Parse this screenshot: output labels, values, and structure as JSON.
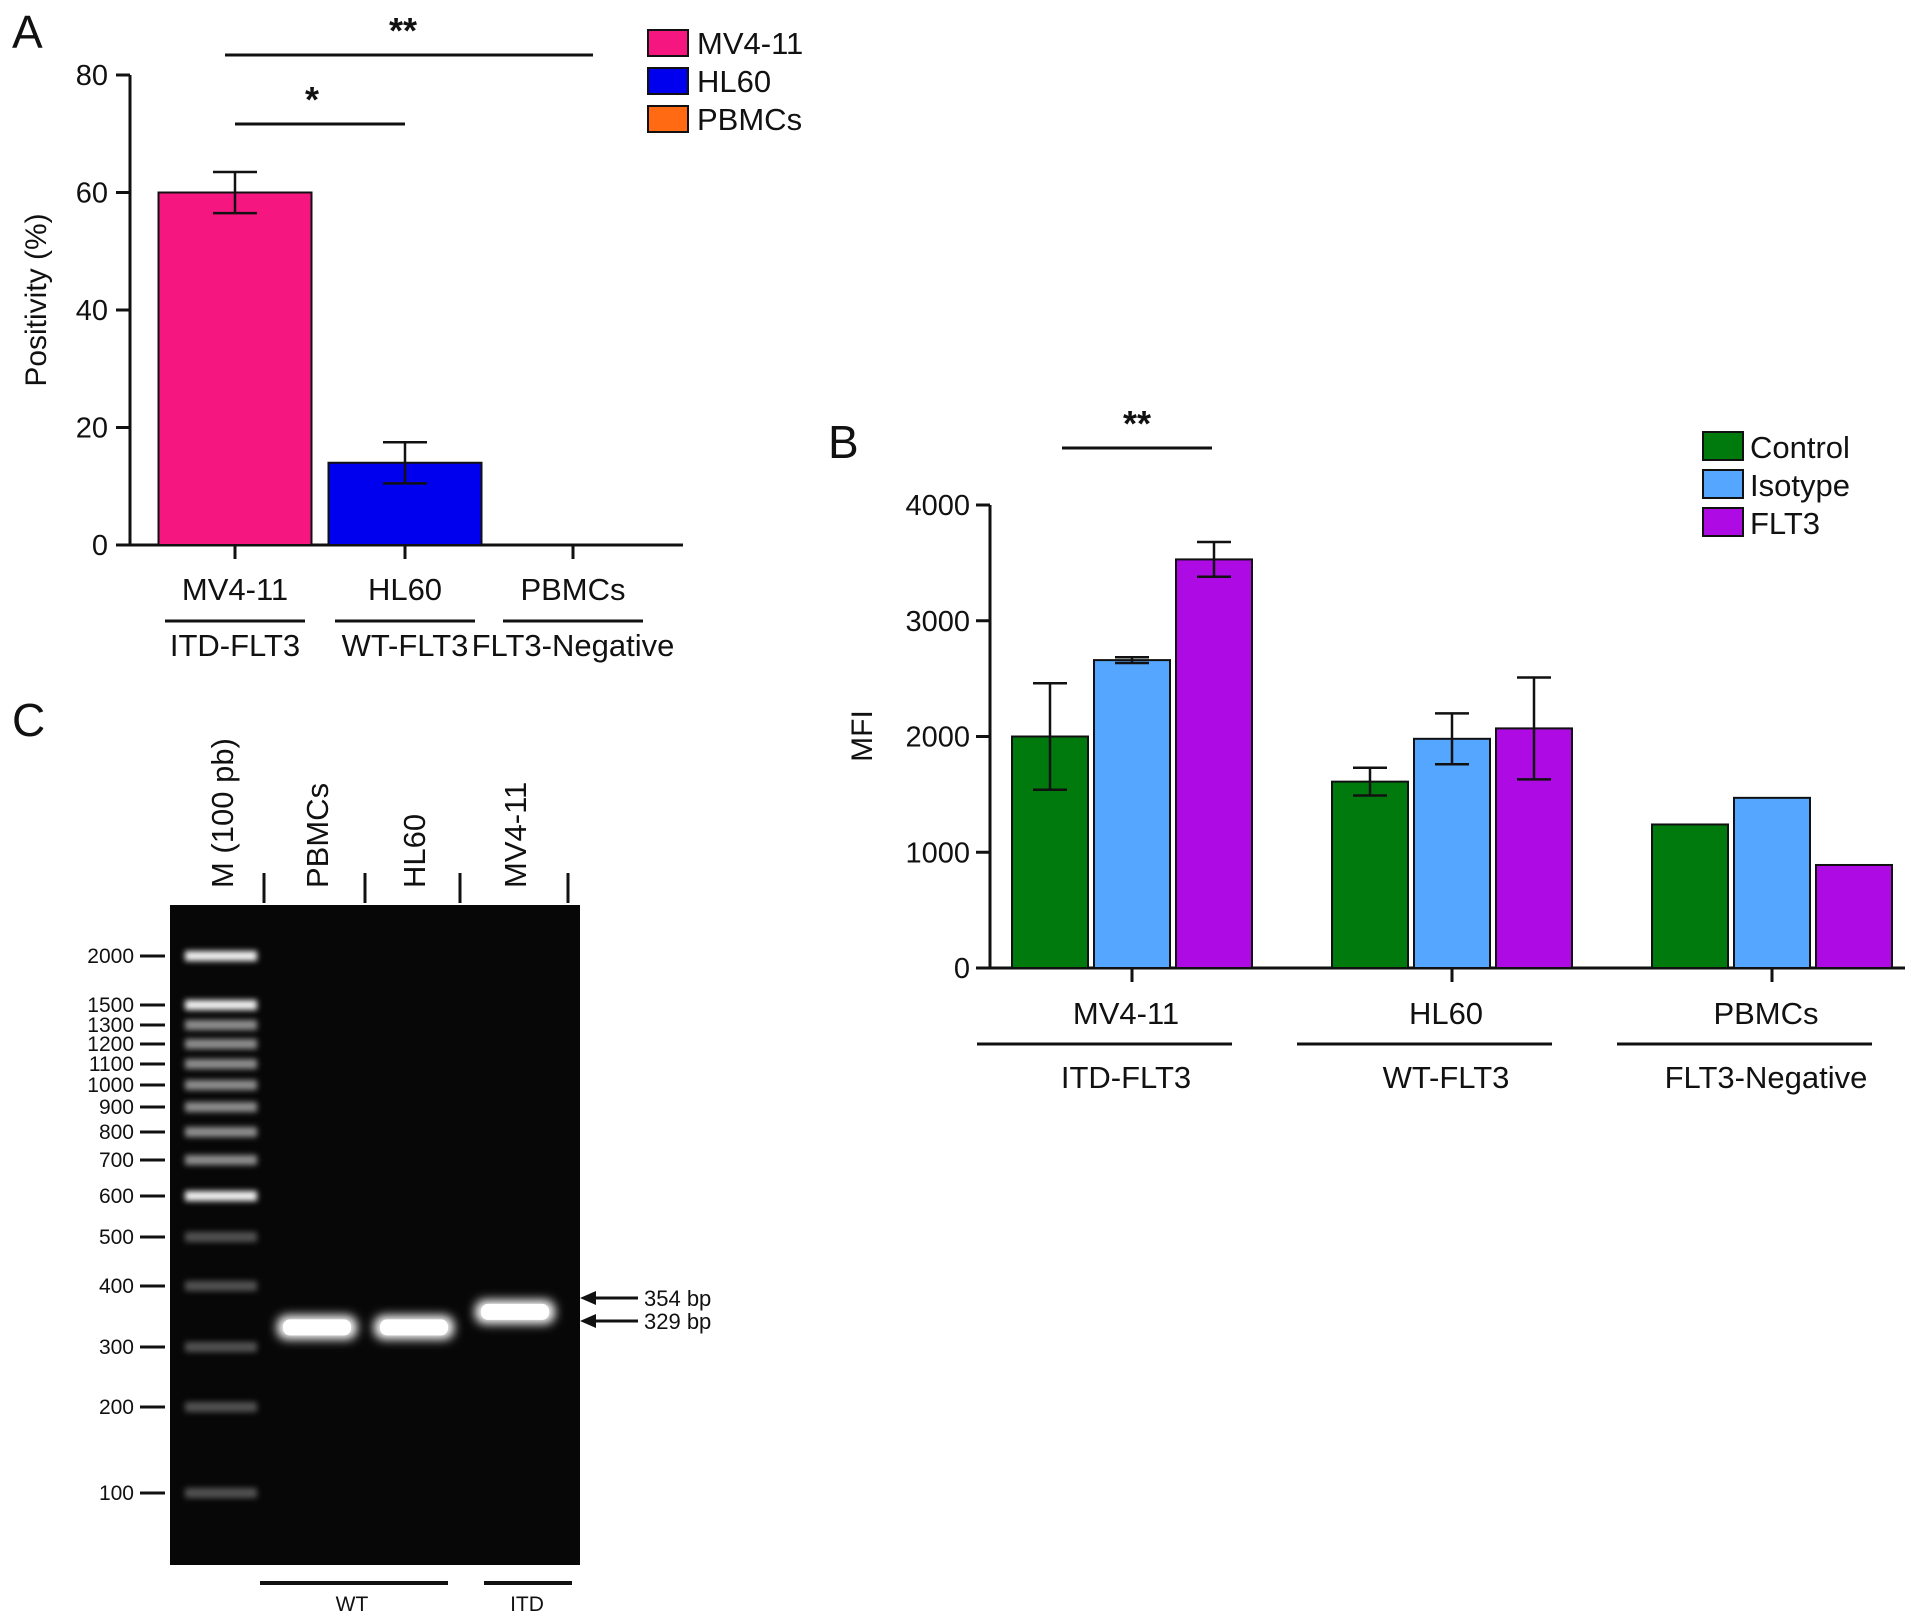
{
  "chart_data": [
    {
      "panel": "A",
      "type": "bar",
      "ylabel": "Positivity (%)",
      "ylim": [
        0,
        80
      ],
      "yticks": [
        0,
        20,
        40,
        60,
        80
      ],
      "categories": [
        "MV4-11",
        "HL60",
        "PBMCs"
      ],
      "groups": [
        "ITD-FLT3",
        "WT-FLT3",
        "FLT3-Negative"
      ],
      "values": [
        60,
        14,
        0
      ],
      "errors": [
        3.5,
        3.5,
        0
      ],
      "colors": [
        "#f5177f",
        "#0000ee",
        "#ff6a13"
      ],
      "legend": {
        "position": "top-right",
        "entries": [
          {
            "label": "MV4-11",
            "color": "#f5177f"
          },
          {
            "label": "HL60",
            "color": "#0000ee"
          },
          {
            "label": "PBMCs",
            "color": "#ff6a13"
          }
        ]
      },
      "significance": [
        {
          "from": 0,
          "to": 1,
          "label": "*"
        },
        {
          "from": 0,
          "to": 2,
          "label": "**"
        }
      ]
    },
    {
      "panel": "B",
      "type": "bar",
      "ylabel": "MFI",
      "ylim": [
        0,
        4000
      ],
      "yticks": [
        0,
        1000,
        2000,
        3000,
        4000
      ],
      "categories": [
        "MV4-11",
        "HL60",
        "PBMCs"
      ],
      "groups": [
        "ITD-FLT3",
        "WT-FLT3",
        "FLT3-Negative"
      ],
      "series": [
        {
          "name": "Control",
          "color": "#007a0c",
          "values": [
            2000,
            1610,
            1240
          ],
          "errors": [
            460,
            120,
            0
          ]
        },
        {
          "name": "Isotype",
          "color": "#55a6ff",
          "values": [
            2660,
            1980,
            1470
          ],
          "errors": [
            25,
            220,
            0
          ]
        },
        {
          "name": "FLT3",
          "color": "#ae0ae4",
          "values": [
            3530,
            2070,
            890
          ],
          "errors": [
            150,
            440,
            0
          ]
        }
      ],
      "legend": {
        "position": "top-right"
      },
      "significance": [
        {
          "category": 0,
          "from": "Control",
          "to": "FLT3",
          "label": "**"
        }
      ]
    },
    {
      "panel": "C",
      "type": "gel",
      "lanes": [
        "M (100 pb)",
        "PBMCs",
        "HL60",
        "MV4-11"
      ],
      "ladder_bp": [
        2000,
        1500,
        1300,
        1200,
        1100,
        1000,
        900,
        800,
        700,
        600,
        500,
        400,
        300,
        200,
        100
      ],
      "bands_bp": [
        {
          "lane": "PBMCs",
          "bp": 329
        },
        {
          "lane": "HL60",
          "bp": 329
        },
        {
          "lane": "MV4-11",
          "bp": 354
        }
      ],
      "arrows": [
        "354 bp",
        "329 bp"
      ],
      "groups": [
        {
          "label": "WT",
          "lanes": [
            "PBMCs",
            "HL60"
          ]
        },
        {
          "label": "ITD",
          "lanes": [
            "MV4-11"
          ]
        }
      ]
    }
  ],
  "panels": {
    "a": {
      "label": "A"
    },
    "b": {
      "label": "B"
    },
    "c": {
      "label": "C"
    }
  }
}
